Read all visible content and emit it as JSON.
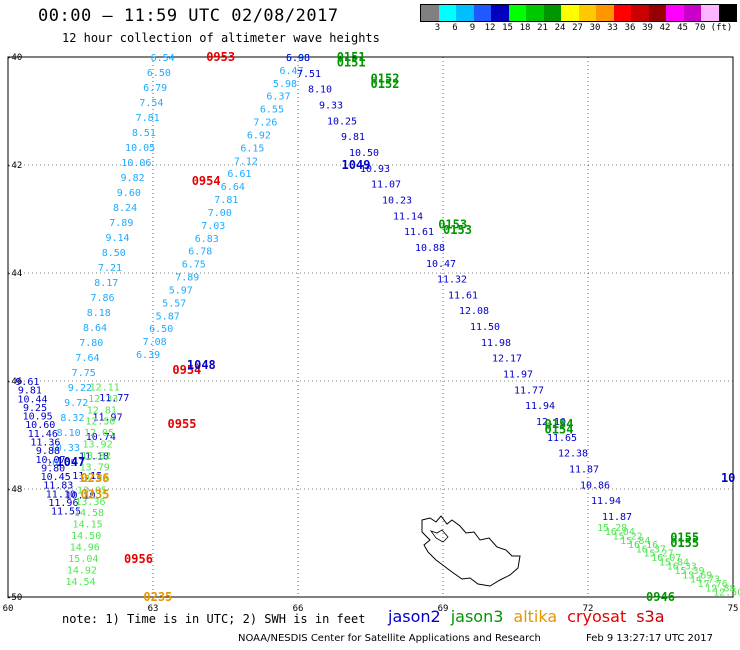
{
  "header": {
    "title": "00:00 – 11:59 UTC 02/08/2017",
    "subtitle": "12 hour collection of altimeter wave heights"
  },
  "color_scale": {
    "colors": [
      "#808080",
      "#00ffff",
      "#00bfff",
      "#1e5aff",
      "#0000c0",
      "#00ff00",
      "#00c800",
      "#009600",
      "#ffff00",
      "#ffc800",
      "#ff9600",
      "#ff0000",
      "#c80000",
      "#960000",
      "#ff00ff",
      "#c800c8",
      "#ffb4ff",
      "#000000"
    ],
    "labels": [
      "3",
      "6",
      "9",
      "12",
      "15",
      "18",
      "21",
      "24",
      "27",
      "30",
      "33",
      "36",
      "39",
      "42",
      "45",
      "70",
      "(ft)"
    ]
  },
  "chart_data": {
    "type": "scatter",
    "title": "",
    "xlabel": "",
    "ylabel": "",
    "xlim": [
      60,
      75
    ],
    "ylim": [
      -50,
      -40
    ],
    "x_ticks": [
      "60",
      "63",
      "66",
      "69",
      "72",
      "75"
    ],
    "y_ticks": [
      "-40",
      "-42",
      "-44",
      "-46",
      "-48",
      "-50"
    ],
    "tracks": [
      {
        "from": [
          63.2,
          -40
        ],
        "to": [
          61.1,
          -47.5
        ],
        "color": "#1eaaff",
        "labels": [
          "6.54",
          "6.50",
          "6.79",
          "7.54",
          "7.81",
          "8.51",
          "10.05",
          "10.06",
          "9.82",
          "9.60",
          "8.24",
          "7.89",
          "9.14",
          "8.50",
          "7.21",
          "8.17",
          "7.86",
          "8.18",
          "8.64",
          "7.80",
          "7.64",
          "7.75",
          "9.22",
          "9.72",
          "8.32",
          "8.10",
          "10.33",
          "10.65"
        ]
      },
      {
        "from": [
          66,
          -40
        ],
        "to": [
          62.9,
          -45.5
        ],
        "color": "#1eaaff",
        "labels": [
          "5.66",
          "6.47",
          "5.98",
          "6.37",
          "6.55",
          "7.26",
          "6.92",
          "6.15",
          "7.12",
          "6.61",
          "6.64",
          "7.81",
          "7.00",
          "7.03",
          "6.83",
          "6.78",
          "6.75",
          "7.89",
          "5.97",
          "5.57",
          "5.87",
          "6.50",
          "7.08",
          "6.39"
        ]
      },
      {
        "from": [
          66,
          -40
        ],
        "to": [
          72.6,
          -48.5
        ],
        "color": "#0000c8",
        "labels": [
          "6.98",
          "7.51",
          "8.10",
          "9.33",
          "10.25",
          "9.81",
          "10.50",
          "10.93",
          "11.07",
          "10.23",
          "11.14",
          "11.61",
          "10.88",
          "10.47",
          "11.32",
          "11.61",
          "12.08",
          "11.50",
          "11.98",
          "12.17",
          "11.97",
          "11.77",
          "11.94",
          "12.10",
          "11.65",
          "12.38",
          "11.87",
          "10.86",
          "11.94",
          "11.87"
        ]
      },
      {
        "from": [
          60.4,
          -46
        ],
        "to": [
          61.2,
          -48.4
        ],
        "color": "#0000c8",
        "labels": [
          "9.61",
          "9.81",
          "10.44",
          "9.25",
          "10.95",
          "10.60",
          "11.46",
          "11.36",
          "9.88",
          "10.07",
          "9.80",
          "10.45",
          "11.83",
          "11.10",
          "11.96",
          "11.55"
        ]
      },
      {
        "from": [
          62.2,
          -46.3
        ],
        "to": [
          61.5,
          -48.1
        ],
        "color": "#0000c8",
        "labels": [
          "11.77",
          "11.97",
          "10.74",
          "11.18",
          "11.15",
          "10.10"
        ]
      },
      {
        "from": [
          62.0,
          -46.1
        ],
        "to": [
          61.5,
          -49.7
        ],
        "color": "#50e650",
        "labels": [
          "12.11",
          "12.33",
          "12.81",
          "12.50",
          "12.05",
          "13.92",
          "13.82",
          "13.79",
          "12.98",
          "13.05",
          "13.36",
          "14.58",
          "14.15",
          "14.50",
          "14.96",
          "15.04",
          "14.92",
          "14.54"
        ]
      },
      {
        "from": [
          72.5,
          -48.7
        ],
        "to": [
          74.9,
          -49.9
        ],
        "color": "#50e650",
        "labels": [
          "15.28",
          "16.04",
          "15.22",
          "15.84",
          "16.16",
          "16.37",
          "15.27",
          "16.07",
          "15.84",
          "16.33",
          "15.39",
          "13.69",
          "14.73",
          "17.76",
          "12.88",
          "12.50"
        ]
      }
    ],
    "time_labels": [
      {
        "text": "0953",
        "x": 64.4,
        "y": -40,
        "color": "#e60000"
      },
      {
        "text": "0954",
        "x": 64.1,
        "y": -42.3,
        "color": "#e60000"
      },
      {
        "text": "0954",
        "x": 63.7,
        "y": -45.8,
        "color": "#e60000"
      },
      {
        "text": "0955",
        "x": 63.6,
        "y": -46.8,
        "color": "#e60000"
      },
      {
        "text": "0956",
        "x": 62.7,
        "y": -49.3,
        "color": "#e60000"
      },
      {
        "text": "1049",
        "x": 67.2,
        "y": -42.0,
        "color": "#0000c8"
      },
      {
        "text": "1048",
        "x": 64.0,
        "y": -45.7,
        "color": "#0000c8"
      },
      {
        "text": "1047",
        "x": 61.3,
        "y": -47.5,
        "color": "#0000c8"
      },
      {
        "text": "0151",
        "x": 67.1,
        "y": -40.0,
        "color": "#009600"
      },
      {
        "text": "0151",
        "x": 67.1,
        "y": -40.1,
        "color": "#009600"
      },
      {
        "text": "0152",
        "x": 67.8,
        "y": -40.4,
        "color": "#009600"
      },
      {
        "text": "0152",
        "x": 67.8,
        "y": -40.5,
        "color": "#009600"
      },
      {
        "text": "0153",
        "x": 69.2,
        "y": -43.1,
        "color": "#009600"
      },
      {
        "text": "0153",
        "x": 69.3,
        "y": -43.2,
        "color": "#009600"
      },
      {
        "text": "0154",
        "x": 71.4,
        "y": -46.8,
        "color": "#009600"
      },
      {
        "text": "0154",
        "x": 71.4,
        "y": -46.9,
        "color": "#009600"
      },
      {
        "text": "0155",
        "x": 74.0,
        "y": -48.9,
        "color": "#009600"
      },
      {
        "text": "0155",
        "x": 74.0,
        "y": -49.0,
        "color": "#009600"
      },
      {
        "text": "0946",
        "x": 73.5,
        "y": -50.0,
        "color": "#009600"
      },
      {
        "text": "0236",
        "x": 61.8,
        "y": -47.8,
        "color": "#e69600"
      },
      {
        "text": "0235",
        "x": 61.8,
        "y": -48.1,
        "color": "#e69600"
      },
      {
        "text": "0235",
        "x": 63.1,
        "y": -50.0,
        "color": "#e69600"
      },
      {
        "text": "10",
        "x": 74.9,
        "y": -47.8,
        "color": "#0000c8"
      }
    ]
  },
  "note": "note: 1) Time is in UTC; 2) SWH is in feet",
  "legend": [
    {
      "name": "jason2",
      "color": "#0000c8"
    },
    {
      "name": "jason3",
      "color": "#009600"
    },
    {
      "name": "altika",
      "color": "#e69600"
    },
    {
      "name": "cryosat",
      "color": "#e60000"
    },
    {
      "name": "s3a",
      "color": "#c80000"
    }
  ],
  "credit": "NOAA/NESDIS Center for Satellite Applications and Research",
  "timestamp": "Feb  9 13:27:17 UTC 2017"
}
